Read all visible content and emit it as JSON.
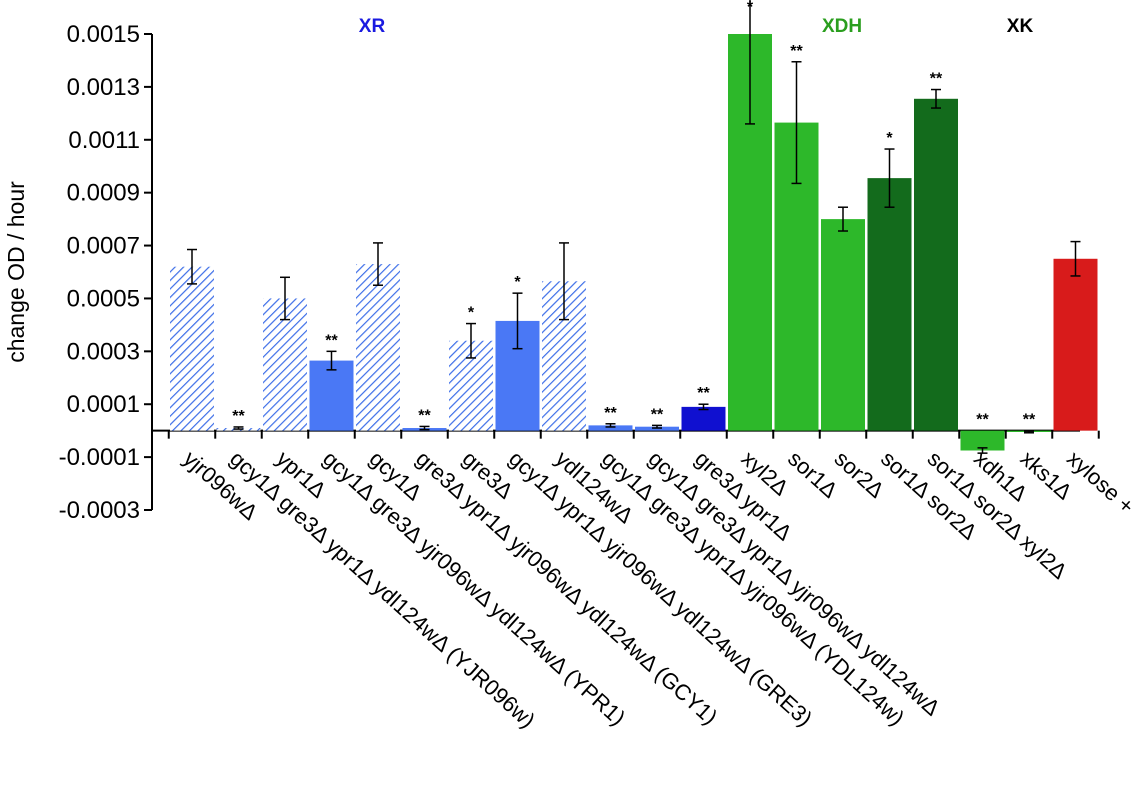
{
  "chart_data": {
    "type": "bar",
    "ylabel": "change OD / hour",
    "ylim": [
      -0.0003,
      0.0015
    ],
    "yticks": [
      "0.0015",
      "0.0013",
      "0.0011",
      "0.0009",
      "0.0007",
      "0.0005",
      "0.0003",
      "0.0001",
      "-0.0001",
      "-0.0003"
    ],
    "group_labels": [
      {
        "text": "XR",
        "color": "#1a1ae0",
        "over": [
          0,
          10
        ]
      },
      {
        "text": "XDH",
        "color": "#2a9e1e",
        "over": [
          11,
          15
        ]
      },
      {
        "text": "XK",
        "color": "#000000",
        "over": [
          16,
          17
        ]
      }
    ],
    "categories": [
      "yjr096wΔ",
      "gcy1Δ gre3Δ ypr1Δ ydl124wΔ (YJR096w)",
      "ypr1Δ",
      "gcy1Δ gre3Δ yjr096wΔ ydl124wΔ (YPR1)",
      "gcy1Δ",
      "gre3Δ ypr1Δ yjr096wΔ ydl124wΔ (GCY1)",
      "gre3Δ",
      "gcy1Δ ypr1Δ yjr096wΔ ydl124wΔ (GRE3)",
      "ydl124wΔ",
      "gcy1Δ gre3Δ ypr1Δ yjr096wΔ (YDL124w)",
      "gcy1Δ gre3Δ ypr1Δ yjr096wΔ ydl124wΔ",
      "gre3Δ ypr1Δ",
      "xyl2Δ",
      "sor1Δ",
      "sor2Δ",
      "sor1Δ sor2Δ",
      "sor1Δ sor2Δ xyl2Δ",
      "xdh1Δ",
      "xks1Δ",
      "xylose +"
    ],
    "values": [
      0.00062,
      1e-05,
      0.0005,
      0.000265,
      0.00063,
      1e-05,
      0.00034,
      0.000415,
      0.000565,
      2e-05,
      1.5e-05,
      9e-05,
      0.0015,
      0.001165,
      0.0008,
      0.000955,
      0.001255,
      -7.5e-05,
      -5e-06,
      0.00065
    ],
    "errors": [
      6.5e-05,
      4e-06,
      8e-05,
      3.5e-05,
      8e-05,
      6e-06,
      6.5e-05,
      0.000105,
      0.000145,
      6e-06,
      5e-06,
      1e-05,
      0.00034,
      0.00023,
      4.5e-05,
      0.00011,
      3.5e-05,
      1e-05,
      3e-06,
      6.5e-05
    ],
    "significance": [
      "",
      "**",
      "",
      "**",
      "",
      "**",
      "*",
      "*",
      "",
      "**",
      "**",
      "**",
      "*",
      "**",
      "",
      "*",
      "**",
      "**",
      "**",
      ""
    ],
    "colors": {
      "xr_hatched": "#3d6ee8",
      "xr_single": "#4a78f5",
      "xr_multi": "#1010d0",
      "xdh_light": "#2db82a",
      "xdh_dark": "#136b1c",
      "xk": "#2db82a",
      "control": "#d81b1b"
    },
    "bar_styles": [
      "hatched",
      "hatched",
      "hatched",
      "xr_single",
      "hatched",
      "xr_single",
      "hatched",
      "xr_single",
      "hatched",
      "xr_single",
      "xr_single",
      "xr_multi",
      "xdh_light",
      "xdh_light",
      "xdh_light",
      "xdh_dark",
      "xdh_dark",
      "xk",
      "xk",
      "control"
    ]
  }
}
